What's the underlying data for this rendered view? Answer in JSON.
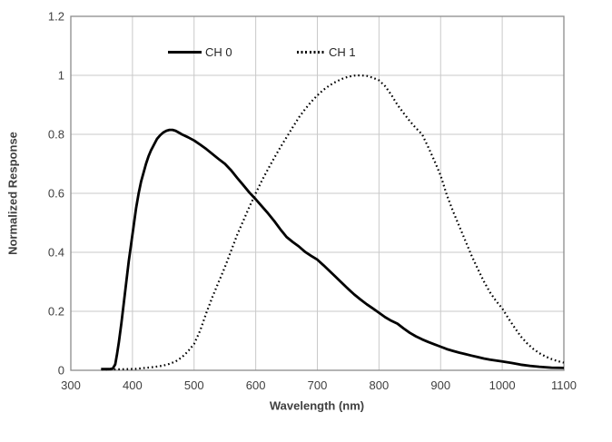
{
  "colors": {
    "background": "#ffffff",
    "plot_border": "#8c8c8c",
    "gridline": "#c9c9c9",
    "text": "#3f3f3f",
    "series_color": "#000000"
  },
  "legend": {
    "ch0_label": "CH 0",
    "ch1_label": "CH 1"
  },
  "chart_data": {
    "type": "line",
    "title": "",
    "xlabel": "Wavelength (nm)",
    "ylabel": "Normalized Response",
    "xlim": [
      300,
      1100
    ],
    "ylim": [
      0,
      1.2
    ],
    "grid": true,
    "legend_position": "top-inside",
    "x_ticks": [
      {
        "value": 300,
        "label": "300"
      },
      {
        "value": 400,
        "label": "400"
      },
      {
        "value": 500,
        "label": "500"
      },
      {
        "value": 600,
        "label": "600"
      },
      {
        "value": 700,
        "label": "700"
      },
      {
        "value": 800,
        "label": "800"
      },
      {
        "value": 900,
        "label": "900"
      },
      {
        "value": 1000,
        "label": "1000"
      },
      {
        "value": 1100,
        "label": "1100"
      }
    ],
    "y_ticks": [
      {
        "value": 0,
        "label": "0"
      },
      {
        "value": 0.2,
        "label": "0.2"
      },
      {
        "value": 0.4,
        "label": "0.4"
      },
      {
        "value": 0.6,
        "label": "0.6"
      },
      {
        "value": 0.8,
        "label": "0.8"
      },
      {
        "value": 1,
        "label": "1"
      },
      {
        "value": 1.2,
        "label": "1.2"
      }
    ],
    "series": [
      {
        "name": "CH 0",
        "style": "solid",
        "color": "#000000",
        "points": [
          [
            349,
            0.004
          ],
          [
            356,
            0.004
          ],
          [
            362,
            0.004
          ],
          [
            368,
            0.006
          ],
          [
            372,
            0.02
          ],
          [
            375,
            0.055
          ],
          [
            378,
            0.095
          ],
          [
            382,
            0.16
          ],
          [
            386,
            0.23
          ],
          [
            390,
            0.3
          ],
          [
            394,
            0.37
          ],
          [
            398,
            0.43
          ],
          [
            402,
            0.49
          ],
          [
            406,
            0.55
          ],
          [
            410,
            0.6
          ],
          [
            414,
            0.64
          ],
          [
            418,
            0.67
          ],
          [
            422,
            0.7
          ],
          [
            426,
            0.725
          ],
          [
            430,
            0.745
          ],
          [
            435,
            0.765
          ],
          [
            440,
            0.785
          ],
          [
            445,
            0.797
          ],
          [
            450,
            0.806
          ],
          [
            455,
            0.812
          ],
          [
            460,
            0.815
          ],
          [
            465,
            0.815
          ],
          [
            470,
            0.812
          ],
          [
            475,
            0.806
          ],
          [
            480,
            0.8
          ],
          [
            490,
            0.79
          ],
          [
            500,
            0.779
          ],
          [
            510,
            0.765
          ],
          [
            520,
            0.75
          ],
          [
            530,
            0.733
          ],
          [
            540,
            0.716
          ],
          [
            550,
            0.7
          ],
          [
            560,
            0.678
          ],
          [
            570,
            0.652
          ],
          [
            580,
            0.627
          ],
          [
            590,
            0.602
          ],
          [
            600,
            0.58
          ],
          [
            610,
            0.556
          ],
          [
            620,
            0.532
          ],
          [
            630,
            0.506
          ],
          [
            640,
            0.478
          ],
          [
            650,
            0.452
          ],
          [
            660,
            0.435
          ],
          [
            670,
            0.42
          ],
          [
            680,
            0.402
          ],
          [
            690,
            0.388
          ],
          [
            700,
            0.375
          ],
          [
            710,
            0.356
          ],
          [
            720,
            0.336
          ],
          [
            730,
            0.316
          ],
          [
            740,
            0.296
          ],
          [
            750,
            0.276
          ],
          [
            760,
            0.257
          ],
          [
            770,
            0.24
          ],
          [
            780,
            0.224
          ],
          [
            790,
            0.21
          ],
          [
            800,
            0.195
          ],
          [
            810,
            0.18
          ],
          [
            820,
            0.168
          ],
          [
            830,
            0.158
          ],
          [
            840,
            0.142
          ],
          [
            850,
            0.127
          ],
          [
            860,
            0.115
          ],
          [
            870,
            0.105
          ],
          [
            880,
            0.096
          ],
          [
            890,
            0.088
          ],
          [
            900,
            0.08
          ],
          [
            910,
            0.072
          ],
          [
            920,
            0.066
          ],
          [
            930,
            0.06
          ],
          [
            940,
            0.055
          ],
          [
            950,
            0.05
          ],
          [
            960,
            0.045
          ],
          [
            970,
            0.04
          ],
          [
            980,
            0.036
          ],
          [
            990,
            0.033
          ],
          [
            1000,
            0.03
          ],
          [
            1015,
            0.025
          ],
          [
            1030,
            0.019
          ],
          [
            1045,
            0.015
          ],
          [
            1060,
            0.012
          ],
          [
            1080,
            0.009
          ],
          [
            1100,
            0.008
          ]
        ]
      },
      {
        "name": "CH 1",
        "style": "dotted",
        "color": "#000000",
        "points": [
          [
            350,
            0.003
          ],
          [
            370,
            0.003
          ],
          [
            390,
            0.004
          ],
          [
            405,
            0.005
          ],
          [
            420,
            0.008
          ],
          [
            435,
            0.011
          ],
          [
            450,
            0.016
          ],
          [
            460,
            0.022
          ],
          [
            470,
            0.03
          ],
          [
            480,
            0.044
          ],
          [
            490,
            0.064
          ],
          [
            500,
            0.09
          ],
          [
            510,
            0.135
          ],
          [
            520,
            0.195
          ],
          [
            530,
            0.25
          ],
          [
            540,
            0.3
          ],
          [
            550,
            0.35
          ],
          [
            560,
            0.405
          ],
          [
            570,
            0.46
          ],
          [
            580,
            0.508
          ],
          [
            590,
            0.555
          ],
          [
            600,
            0.6
          ],
          [
            610,
            0.643
          ],
          [
            620,
            0.682
          ],
          [
            630,
            0.72
          ],
          [
            640,
            0.756
          ],
          [
            650,
            0.79
          ],
          [
            660,
            0.824
          ],
          [
            670,
            0.857
          ],
          [
            680,
            0.885
          ],
          [
            690,
            0.91
          ],
          [
            700,
            0.932
          ],
          [
            710,
            0.951
          ],
          [
            720,
            0.966
          ],
          [
            730,
            0.978
          ],
          [
            740,
            0.988
          ],
          [
            750,
            0.995
          ],
          [
            760,
            0.999
          ],
          [
            770,
            1.0
          ],
          [
            780,
            0.998
          ],
          [
            790,
            0.992
          ],
          [
            800,
            0.983
          ],
          [
            810,
            0.963
          ],
          [
            820,
            0.934
          ],
          [
            830,
            0.9
          ],
          [
            840,
            0.872
          ],
          [
            850,
            0.845
          ],
          [
            860,
            0.821
          ],
          [
            870,
            0.8
          ],
          [
            880,
            0.756
          ],
          [
            890,
            0.71
          ],
          [
            900,
            0.66
          ],
          [
            910,
            0.595
          ],
          [
            920,
            0.54
          ],
          [
            930,
            0.49
          ],
          [
            940,
            0.44
          ],
          [
            950,
            0.39
          ],
          [
            960,
            0.345
          ],
          [
            970,
            0.302
          ],
          [
            980,
            0.265
          ],
          [
            990,
            0.235
          ],
          [
            1000,
            0.21
          ],
          [
            1010,
            0.176
          ],
          [
            1020,
            0.145
          ],
          [
            1030,
            0.115
          ],
          [
            1040,
            0.092
          ],
          [
            1050,
            0.073
          ],
          [
            1060,
            0.058
          ],
          [
            1070,
            0.047
          ],
          [
            1080,
            0.038
          ],
          [
            1090,
            0.031
          ],
          [
            1100,
            0.026
          ]
        ]
      }
    ]
  }
}
